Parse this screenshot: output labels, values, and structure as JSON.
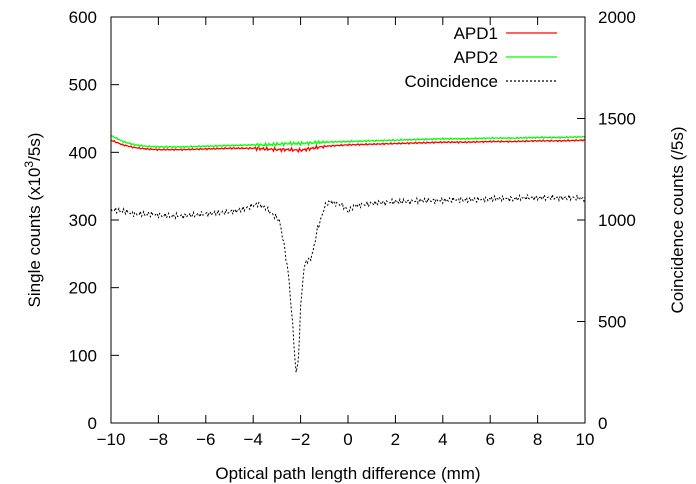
{
  "chart_data": {
    "type": "line",
    "xlabel": "Optical path length difference (mm)",
    "ylabel_left": {
      "main": "Single counts (x10",
      "sup": "3",
      "tail": "/5s)"
    },
    "ylabel_right": "Coincidence counts (/5s)",
    "xlim": [
      -10,
      10
    ],
    "ylim_left": [
      0,
      600
    ],
    "ylim_right": [
      0,
      2000
    ],
    "x_ticks": [
      -10,
      -8,
      -6,
      -4,
      -2,
      0,
      2,
      4,
      6,
      8,
      10
    ],
    "x_tick_labels": [
      "−10",
      "−8",
      "−6",
      "−4",
      "−2",
      "0",
      "2",
      "4",
      "6",
      "8",
      "10"
    ],
    "y_left_ticks": [
      0,
      100,
      200,
      300,
      400,
      500,
      600
    ],
    "y_left_tick_labels": [
      "0",
      "100",
      "200",
      "300",
      "400",
      "500",
      "600"
    ],
    "y_right_ticks": [
      0,
      500,
      1000,
      1500,
      2000
    ],
    "y_right_tick_labels": [
      "0",
      "500",
      "1000",
      "1500",
      "2000"
    ],
    "grid": false,
    "legend_position": "top-right",
    "series": [
      {
        "name": "APD1",
        "axis": "left",
        "color": "#ff0000",
        "style": "solid",
        "x": [
          -10,
          -9.5,
          -9,
          -8.5,
          -8,
          -7,
          -6,
          -5,
          -4,
          -3.5,
          -3,
          -2.5,
          -2,
          -1.5,
          -1,
          0,
          1,
          2,
          3,
          4,
          5,
          6,
          7,
          8,
          9,
          10
        ],
        "y": [
          418,
          411,
          407,
          405,
          404,
          404,
          405,
          406,
          406,
          405,
          404,
          404,
          403,
          406,
          409,
          411,
          412,
          413,
          414,
          415,
          415,
          416,
          416,
          417,
          417,
          418
        ]
      },
      {
        "name": "APD2",
        "axis": "left",
        "color": "#00ff00",
        "style": "solid",
        "x": [
          -10,
          -9.5,
          -9,
          -8.5,
          -8,
          -7,
          -6,
          -5,
          -4,
          -3.5,
          -3,
          -2.5,
          -2,
          -1.5,
          -1,
          0,
          1,
          2,
          3,
          4,
          5,
          6,
          7,
          8,
          9,
          10
        ],
        "y": [
          425,
          416,
          411,
          409,
          408,
          408,
          409,
          410,
          411,
          411,
          412,
          413,
          413,
          414,
          415,
          416,
          417,
          418,
          419,
          420,
          420,
          421,
          421,
          422,
          422,
          423
        ]
      },
      {
        "name": "Coincidence",
        "axis": "right",
        "color": "#000000",
        "style": "dashed",
        "x": [
          -10,
          -9.5,
          -9,
          -8.5,
          -8,
          -7.5,
          -7,
          -6.5,
          -6,
          -5.5,
          -5,
          -4.5,
          -4,
          -3.8,
          -3.5,
          -3.3,
          -3.1,
          -2.9,
          -2.7,
          -2.5,
          -2.3,
          -2.2,
          -2.1,
          -2.0,
          -1.9,
          -1.8,
          -1.7,
          -1.6,
          -1.5,
          -1.3,
          -1.1,
          -1.0,
          -0.9,
          -0.7,
          -0.5,
          -0.3,
          -0.1,
          0,
          0.3,
          0.6,
          1,
          1.5,
          2,
          2.5,
          3,
          3.5,
          4,
          4.5,
          5,
          5.5,
          6,
          6.5,
          7,
          7.5,
          8,
          8.5,
          9,
          9.5,
          10
        ],
        "y": [
          1050,
          1045,
          1030,
          1030,
          1025,
          1020,
          1020,
          1025,
          1030,
          1035,
          1040,
          1050,
          1070,
          1080,
          1060,
          1040,
          1020,
          1000,
          880,
          720,
          430,
          240,
          300,
          560,
          720,
          790,
          800,
          810,
          830,
          950,
          1020,
          1060,
          1080,
          1090,
          1080,
          1075,
          1060,
          1040,
          1070,
          1075,
          1080,
          1085,
          1090,
          1090,
          1095,
          1095,
          1095,
          1100,
          1100,
          1100,
          1105,
          1105,
          1105,
          1110,
          1110,
          1110,
          1110,
          1110,
          1105
        ]
      }
    ]
  }
}
